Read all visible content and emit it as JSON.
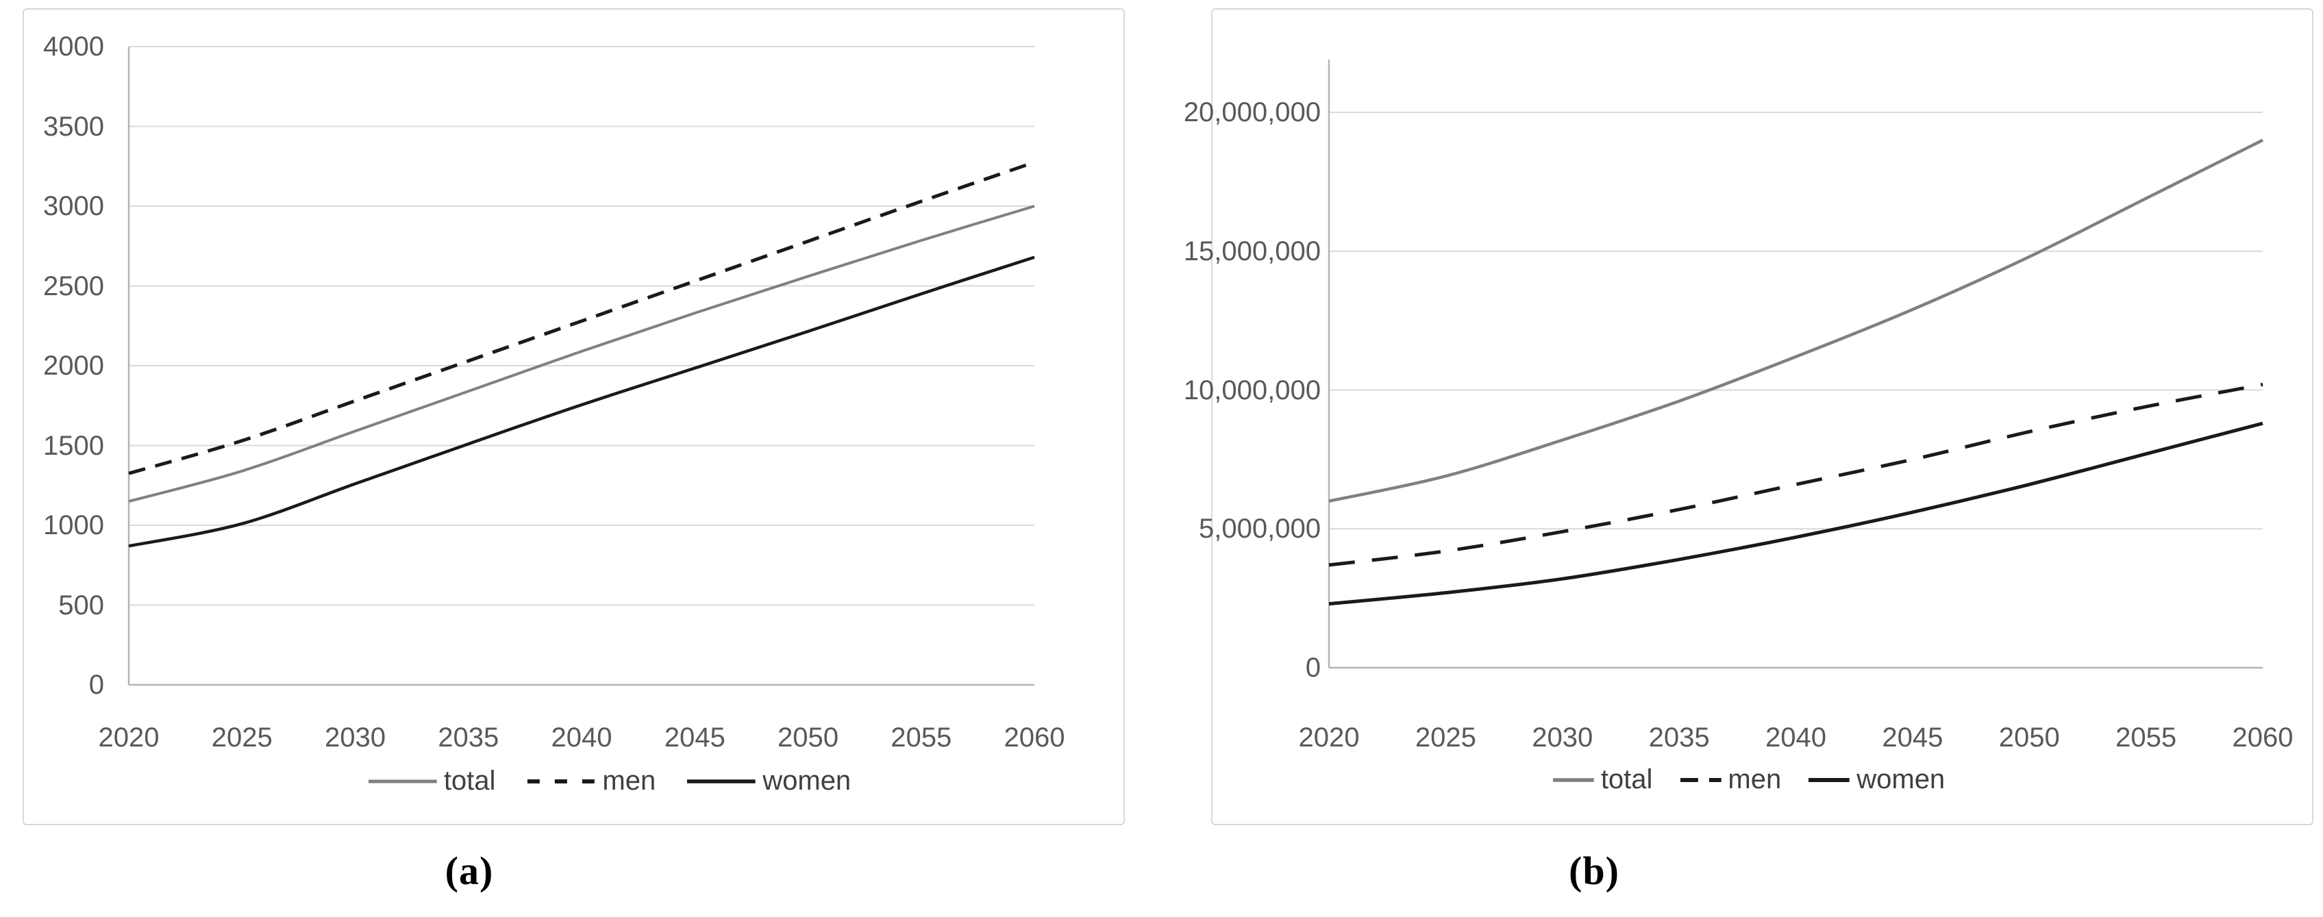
{
  "figure": {
    "captions": [
      {
        "label": "(a)"
      },
      {
        "label": "(b)"
      }
    ]
  },
  "colors": {
    "gridline": "#d9d9d9",
    "axis_line": "#b3b3b3",
    "tick_text": "#595959",
    "legend_text": "#3f3f3f",
    "series_total": "#808080",
    "series_black": "#1a1a1a"
  },
  "chart_data": [
    {
      "id": "a",
      "type": "line",
      "title": "",
      "xlabel": "",
      "ylabel": "",
      "grid": true,
      "legend_position": "bottom",
      "x_categories": [
        "2020",
        "2025",
        "2030",
        "2035",
        "2040",
        "2045",
        "2050",
        "2055",
        "2060"
      ],
      "ylim": [
        0,
        4000
      ],
      "plot_top_value": 4000,
      "y_ticks": [
        {
          "value": 0,
          "label": "0"
        },
        {
          "value": 500,
          "label": "500"
        },
        {
          "value": 1000,
          "label": "1000"
        },
        {
          "value": 1500,
          "label": "1500"
        },
        {
          "value": 2000,
          "label": "2000"
        },
        {
          "value": 2500,
          "label": "2500"
        },
        {
          "value": 3000,
          "label": "3000"
        },
        {
          "value": 3500,
          "label": "3500"
        },
        {
          "value": 4000,
          "label": "4000"
        }
      ],
      "series": [
        {
          "name": "total",
          "values": [
            1150,
            1340,
            1590,
            1840,
            2090,
            2330,
            2560,
            2785,
            3000
          ],
          "style": {
            "color": "#808080",
            "width": 4,
            "dash": null,
            "legend_dash": null
          }
        },
        {
          "name": "men",
          "values": [
            1325,
            1530,
            1780,
            2030,
            2280,
            2530,
            2780,
            3030,
            3275
          ],
          "style": {
            "color": "#1a1a1a",
            "width": 5,
            "dash": [
              25,
              15
            ],
            "legend_dash": [
              18,
              22
            ]
          }
        },
        {
          "name": "women",
          "values": [
            870,
            1010,
            1260,
            1510,
            1755,
            1985,
            2215,
            2450,
            2680
          ],
          "style": {
            "color": "#1a1a1a",
            "width": 4.5,
            "dash": null,
            "legend_dash": null
          }
        }
      ]
    },
    {
      "id": "b",
      "type": "line",
      "title": "",
      "xlabel": "",
      "ylabel": "",
      "grid": true,
      "legend_position": "bottom",
      "x_categories": [
        "2020",
        "2025",
        "2030",
        "2035",
        "2040",
        "2045",
        "2050",
        "2055",
        "2060"
      ],
      "ylim": [
        0,
        20000000
      ],
      "plot_top_value": 21900000,
      "y_ticks": [
        {
          "value": 0,
          "label": "0"
        },
        {
          "value": 5000000,
          "label": "5,000,000"
        },
        {
          "value": 10000000,
          "label": "10,000,000"
        },
        {
          "value": 15000000,
          "label": "15,000,000"
        },
        {
          "value": 20000000,
          "label": "20,000,000"
        }
      ],
      "series": [
        {
          "name": "total",
          "values": [
            6000000,
            6900000,
            8200000,
            9600000,
            11200000,
            12900000,
            14800000,
            16900000,
            19000000
          ],
          "style": {
            "color": "#808080",
            "width": 4.5,
            "dash": null,
            "legend_dash": null
          }
        },
        {
          "name": "men",
          "values": [
            3700000,
            4200000,
            4900000,
            5700000,
            6600000,
            7500000,
            8500000,
            9400000,
            10200000
          ],
          "style": {
            "color": "#1a1a1a",
            "width": 5,
            "dash": [
              38,
              25
            ],
            "legend_dash": [
              26,
              16
            ]
          }
        },
        {
          "name": "women",
          "values": [
            2300000,
            2700000,
            3200000,
            3900000,
            4700000,
            5600000,
            6600000,
            7700000,
            8800000
          ],
          "style": {
            "color": "#1a1a1a",
            "width": 5,
            "dash": null,
            "legend_dash": null
          }
        }
      ]
    }
  ]
}
